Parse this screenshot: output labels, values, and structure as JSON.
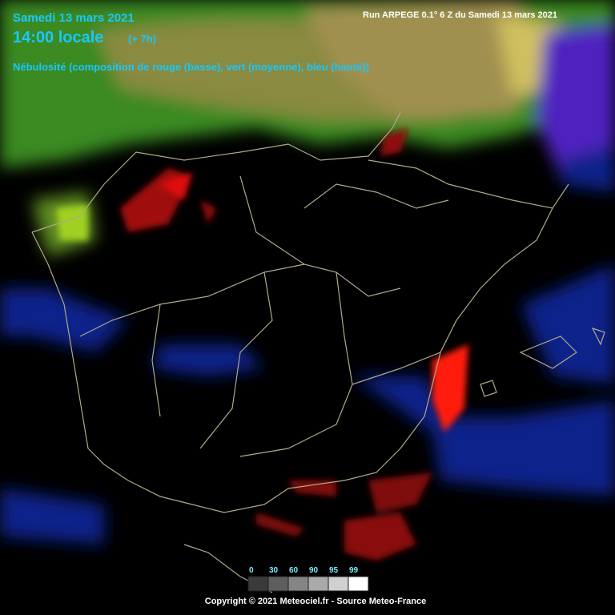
{
  "header": {
    "date": "Samedi 13 mars 2021",
    "time": "14:00 locale",
    "offset": "(+ 7h)",
    "description": "Nébulosité (composition de rouge (basse), vert (moyenne), bleu (haute))",
    "run": "Run ARPEGE 0.1° 6 Z du Samedi 13 mars 2021"
  },
  "legend": {
    "ticks": [
      0,
      30,
      60,
      90,
      95,
      99
    ],
    "colors": [
      "#3a3a3a",
      "#5e5e5e",
      "#858585",
      "#aaaaaa",
      "#d0d0d0",
      "#ffffff"
    ]
  },
  "footer": "Copyright © 2021 Meteociel.fr - Source Meteo-France"
}
